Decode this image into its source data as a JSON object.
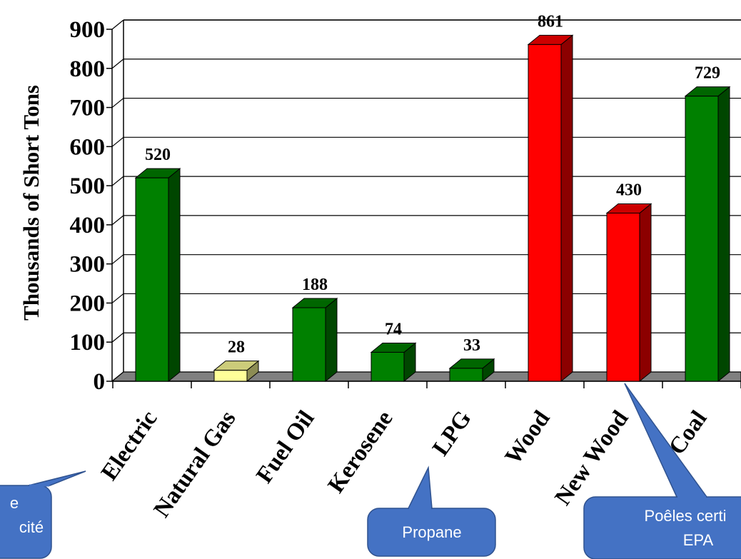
{
  "chart_data": {
    "type": "bar",
    "title": "",
    "xlabel": "",
    "ylabel": "Thousands of Short Tons",
    "ylim": [
      0,
      900
    ],
    "yticks": [
      0,
      100,
      200,
      300,
      400,
      500,
      600,
      700,
      800,
      900
    ],
    "grid": true,
    "legend": "none",
    "categories": [
      "Electric",
      "Natural Gas",
      "Fuel Oil",
      "Kerosene",
      "LPG",
      "Wood",
      "New Wood",
      "Coal"
    ],
    "values": [
      520,
      28,
      188,
      74,
      33,
      861,
      430,
      729
    ],
    "data_labels": [
      "520",
      "28",
      "188",
      "74",
      "33",
      "861",
      "430",
      "729"
    ],
    "bar_colors": [
      "#008000",
      "#ffff99",
      "#008000",
      "#008000",
      "#008000",
      "#ff0000",
      "#ff0000",
      "#008000"
    ]
  },
  "callouts": [
    {
      "lines": [
        "e",
        "cité"
      ],
      "target": "Electric"
    },
    {
      "lines": [
        "Propane"
      ],
      "target": "LPG"
    },
    {
      "lines": [
        "Poêles certi",
        "EPA"
      ],
      "target": "New Wood"
    }
  ],
  "colors": {
    "callout_fill": "#4472c4",
    "callout_stroke": "#2f528f",
    "floor": "#808080"
  }
}
